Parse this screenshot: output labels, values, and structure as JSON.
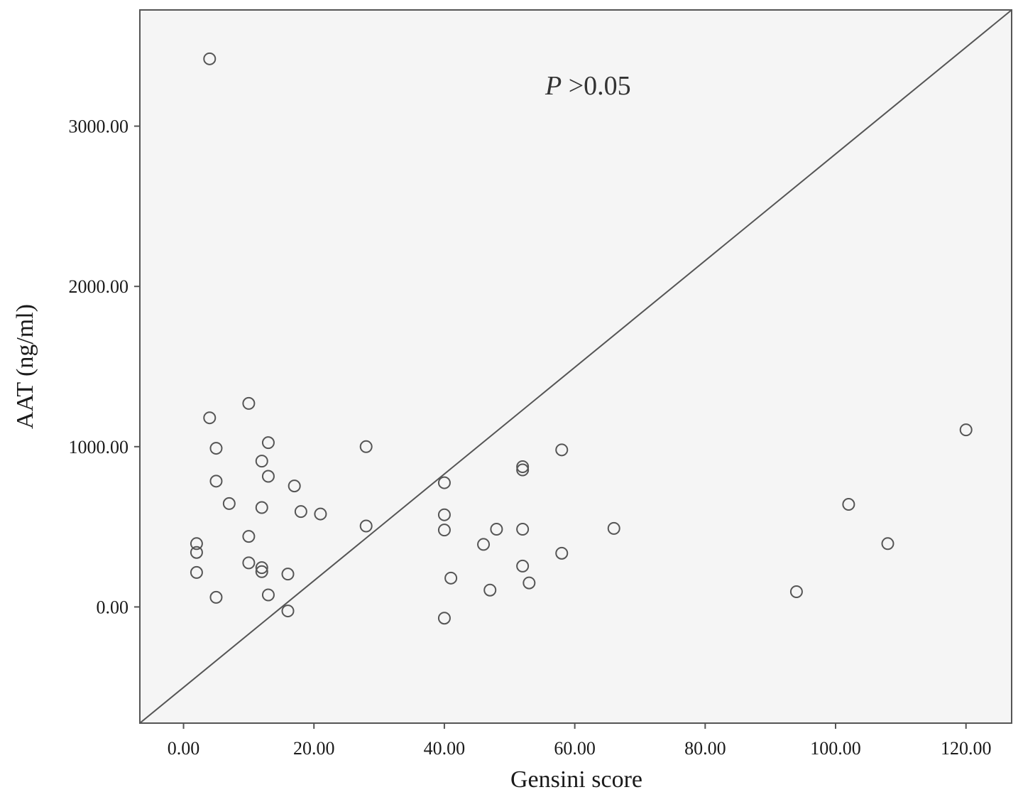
{
  "chart_data": {
    "type": "scatter",
    "title": "",
    "xlabel": "Gensini score",
    "ylabel": "AAT (ng/ml)",
    "xlim": [
      -6.7,
      127
    ],
    "ylim": [
      -725,
      3725
    ],
    "x_ticks": [
      0,
      20,
      40,
      60,
      80,
      100,
      120
    ],
    "x_tick_labels": [
      "0.00",
      "20.00",
      "40.00",
      "60.00",
      "80.00",
      "100.00",
      "120.00"
    ],
    "y_ticks": [
      0,
      1000,
      2000,
      3000
    ],
    "y_tick_labels": [
      "0.00",
      "1000.00",
      "2000.00",
      "3000.00"
    ],
    "grid": false,
    "legend": "none",
    "annotation": {
      "italic_part": "P",
      "rest": " >0.05"
    },
    "reference_line": {
      "from": [
        -6.7,
        -725
      ],
      "to": [
        127,
        3725
      ]
    },
    "points": [
      {
        "x": 4,
        "y": 3420
      },
      {
        "x": 10,
        "y": 1270
      },
      {
        "x": 4,
        "y": 1180
      },
      {
        "x": 13,
        "y": 1025
      },
      {
        "x": 5,
        "y": 990
      },
      {
        "x": 28,
        "y": 1000
      },
      {
        "x": 12,
        "y": 910
      },
      {
        "x": 13,
        "y": 815
      },
      {
        "x": 5,
        "y": 785
      },
      {
        "x": 17,
        "y": 755
      },
      {
        "x": 7,
        "y": 645
      },
      {
        "x": 12,
        "y": 620
      },
      {
        "x": 18,
        "y": 595
      },
      {
        "x": 21,
        "y": 580
      },
      {
        "x": 28,
        "y": 505
      },
      {
        "x": 10,
        "y": 440
      },
      {
        "x": 2,
        "y": 395
      },
      {
        "x": 2,
        "y": 340
      },
      {
        "x": 10,
        "y": 275
      },
      {
        "x": 12,
        "y": 245
      },
      {
        "x": 12,
        "y": 220
      },
      {
        "x": 2,
        "y": 215
      },
      {
        "x": 16,
        "y": 205
      },
      {
        "x": 13,
        "y": 75
      },
      {
        "x": 5,
        "y": 60
      },
      {
        "x": 16,
        "y": -25
      },
      {
        "x": 40,
        "y": 775
      },
      {
        "x": 40,
        "y": 575
      },
      {
        "x": 40,
        "y": 480
      },
      {
        "x": 41,
        "y": 180
      },
      {
        "x": 40,
        "y": -70
      },
      {
        "x": 46,
        "y": 390
      },
      {
        "x": 47,
        "y": 105
      },
      {
        "x": 48,
        "y": 485
      },
      {
        "x": 52,
        "y": 875
      },
      {
        "x": 52,
        "y": 855
      },
      {
        "x": 52,
        "y": 485
      },
      {
        "x": 52,
        "y": 255
      },
      {
        "x": 53,
        "y": 150
      },
      {
        "x": 58,
        "y": 980
      },
      {
        "x": 58,
        "y": 335
      },
      {
        "x": 66,
        "y": 490
      },
      {
        "x": 94,
        "y": 95
      },
      {
        "x": 102,
        "y": 640
      },
      {
        "x": 108,
        "y": 395
      },
      {
        "x": 120,
        "y": 1105
      }
    ]
  },
  "colors": {
    "plot_background": "#f5f5f5",
    "axis_line": "#555555",
    "marker_stroke": "#555555",
    "reference_line": "#555555",
    "text": "#1a1a1a"
  }
}
